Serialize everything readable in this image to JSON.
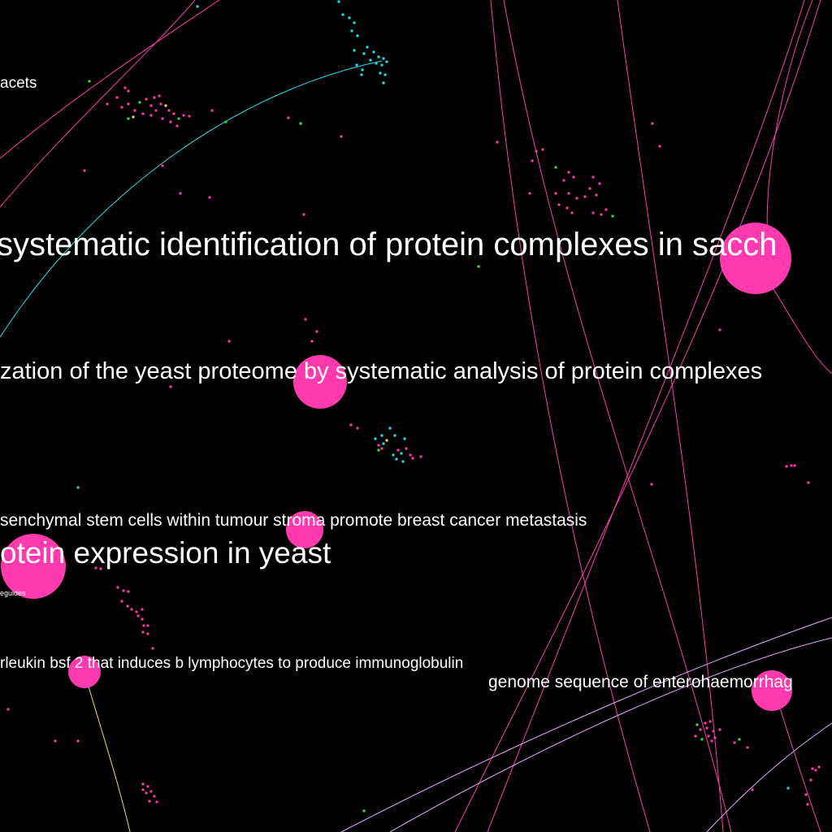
{
  "background_color": "#000000",
  "palette": {
    "pink": "#ff3aaf",
    "cyan": "#23e0ef",
    "green": "#37e23d",
    "yellow": "#f1e43b",
    "lavender": "#e9a9ff",
    "label": "#ffffff"
  },
  "labels": {
    "l1": "acets",
    "l2": "systematic identification of protein complexes in sacch",
    "l3": "zation of the yeast proteome by systematic analysis of protein complexes",
    "l4": "senchymal stem cells within tumour stroma promote breast cancer metastasis",
    "l5": "otein expression in yeast",
    "l6": "eguides",
    "l7": "rleukin bsf 2 that induces b lymphocytes to produce immunoglobulin",
    "l8": "genome sequence of enterohaemorrhag"
  }
}
